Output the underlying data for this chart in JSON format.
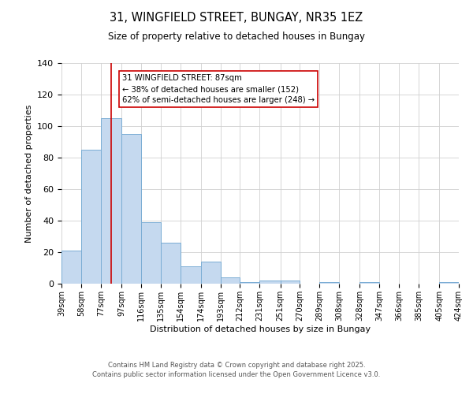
{
  "title": "31, WINGFIELD STREET, BUNGAY, NR35 1EZ",
  "subtitle": "Size of property relative to detached houses in Bungay",
  "xlabel": "Distribution of detached houses by size in Bungay",
  "ylabel": "Number of detached properties",
  "bar_color": "#c5d9ef",
  "bar_edge_color": "#7aadd4",
  "background_color": "#ffffff",
  "grid_color": "#d0d0d0",
  "vline_x": 87,
  "vline_color": "#cc0000",
  "bin_edges": [
    39,
    58,
    77,
    97,
    116,
    135,
    154,
    174,
    193,
    212,
    231,
    251,
    270,
    289,
    308,
    328,
    347,
    366,
    385,
    405,
    424
  ],
  "counts": [
    21,
    85,
    105,
    95,
    39,
    26,
    11,
    14,
    4,
    1,
    2,
    2,
    0,
    1,
    0,
    1,
    0,
    0,
    0,
    1
  ],
  "tick_labels": [
    "39sqm",
    "58sqm",
    "77sqm",
    "97sqm",
    "116sqm",
    "135sqm",
    "154sqm",
    "174sqm",
    "193sqm",
    "212sqm",
    "231sqm",
    "251sqm",
    "270sqm",
    "289sqm",
    "308sqm",
    "328sqm",
    "347sqm",
    "366sqm",
    "385sqm",
    "405sqm",
    "424sqm"
  ],
  "ylim": [
    0,
    140
  ],
  "yticks": [
    0,
    20,
    40,
    60,
    80,
    100,
    120,
    140
  ],
  "annotation_title": "31 WINGFIELD STREET: 87sqm",
  "annotation_line1": "← 38% of detached houses are smaller (152)",
  "annotation_line2": "62% of semi-detached houses are larger (248) →",
  "annotation_box_color": "#ffffff",
  "annotation_box_edge": "#cc0000",
  "footer_line1": "Contains HM Land Registry data © Crown copyright and database right 2025.",
  "footer_line2": "Contains public sector information licensed under the Open Government Licence v3.0."
}
